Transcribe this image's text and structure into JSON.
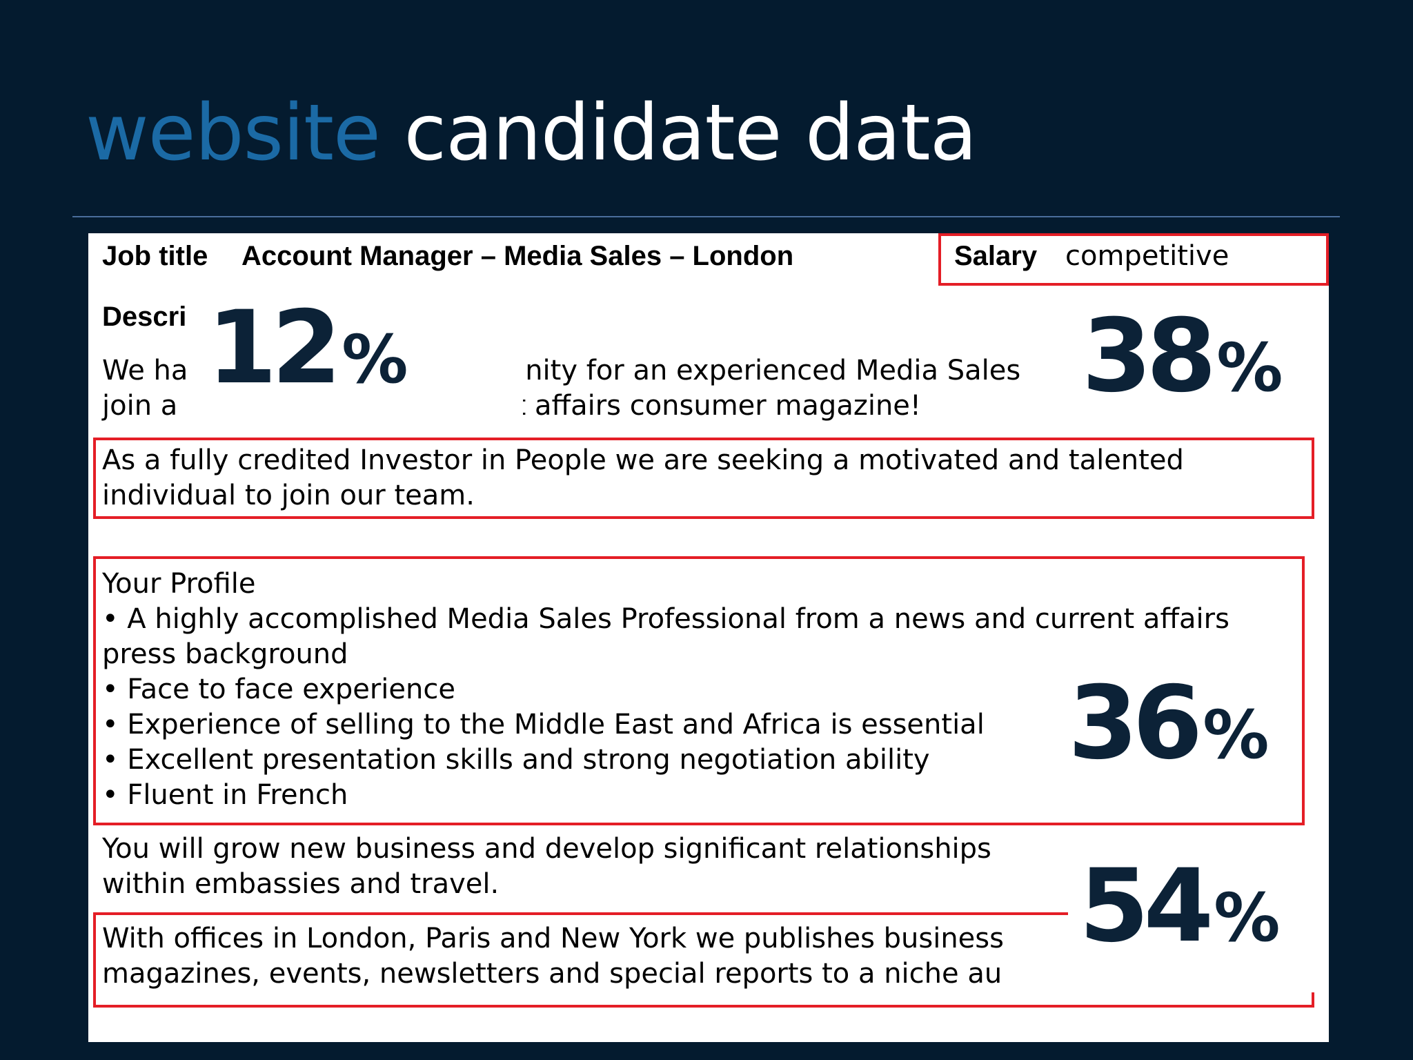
{
  "slide": {
    "title_accent": "website",
    "title_rest": " candidate data"
  },
  "ad": {
    "job_title_label": "Job title",
    "job_title_value": "Account Manager – Media Sales – London",
    "salary_label": "Salary",
    "salary_value": "competitive",
    "description_label": "Descri",
    "intro_line1_left": "We ha",
    "intro_line1_right": "opportunity for an experienced Media Sales",
    "intro_line2_left": "join a",
    "intro_line2_right": "current affairs consumer magazine!",
    "investor_line1": "As a fully credited Investor in People we are seeking a motivated and talented",
    "investor_line2": "individual to join our team.",
    "profile_heading": "Your Profile",
    "profile_lines": [
      "• A highly accomplished Media Sales Professional from a news and current affairs",
      "press background",
      "• Face to face experience",
      "• Experience of selling to the Middle East and Africa is essential",
      "• Excellent presentation skills and strong negotiation ability",
      "• Fluent in French"
    ],
    "grow_line1": "You will grow new business and develop significant relationships",
    "grow_line2": "within embassies and travel.",
    "offices_line1": "With offices in London, Paris and New York we publishes business",
    "offices_line2": "magazines, events, newsletters and special reports to a niche au"
  },
  "stats": [
    {
      "value": "12",
      "unit": "%"
    },
    {
      "value": "38",
      "unit": "%"
    },
    {
      "value": "36",
      "unit": "%"
    },
    {
      "value": "54",
      "unit": "%"
    }
  ],
  "colors": {
    "background": "#041b2f",
    "title_accent": "#1b6aa5",
    "title_rest": "#ffffff",
    "highlight_box": "#e41e26",
    "stat_text": "#0c2237"
  }
}
